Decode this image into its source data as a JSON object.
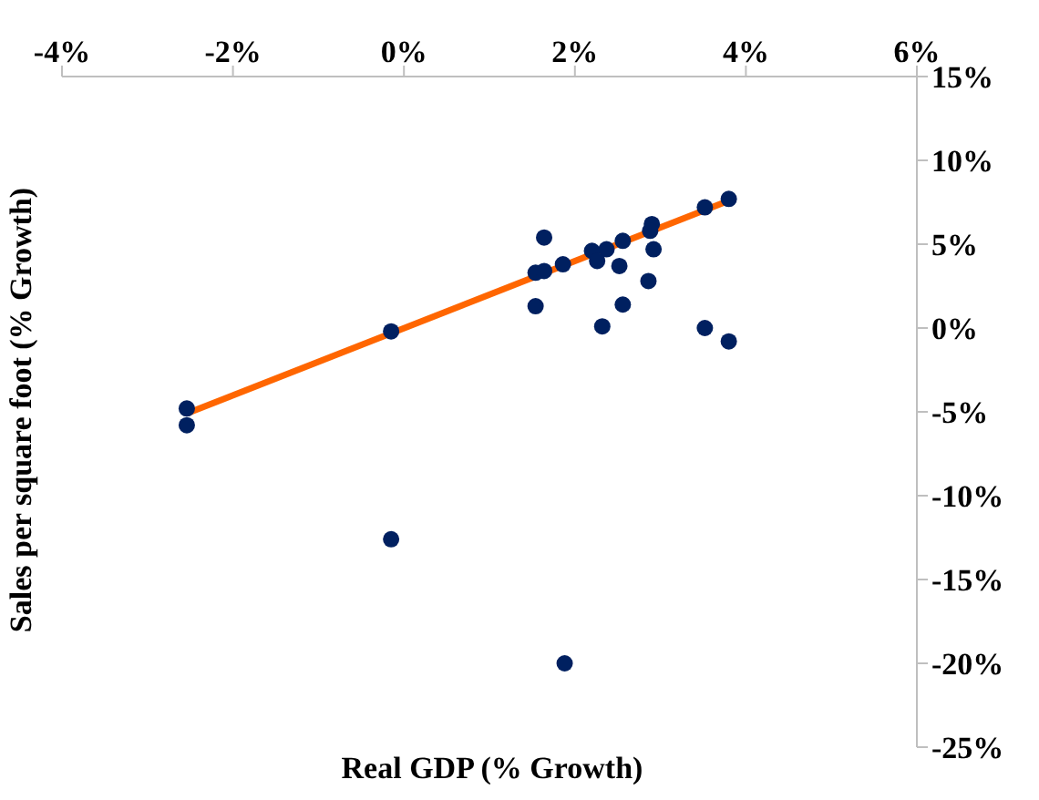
{
  "chart_data": {
    "type": "scatter",
    "xlabel": "Real GDP (% Growth)",
    "ylabel": "Sales per square foot (% Growth)",
    "xlim": [
      -4,
      6
    ],
    "xticks": [
      {
        "value": -4,
        "label": "-4%"
      },
      {
        "value": -2,
        "label": "-2%"
      },
      {
        "value": 0,
        "label": "0%"
      },
      {
        "value": 2,
        "label": "2%"
      },
      {
        "value": 4,
        "label": "4%"
      },
      {
        "value": 6,
        "label": "6%"
      }
    ],
    "ylim": [
      -25,
      15
    ],
    "yticks": [
      {
        "value": -25,
        "label": "-25%"
      },
      {
        "value": -20,
        "label": "-20%"
      },
      {
        "value": -15,
        "label": "-15%"
      },
      {
        "value": -10,
        "label": "-10%"
      },
      {
        "value": -5,
        "label": "-5%"
      },
      {
        "value": 0,
        "label": "0%"
      },
      {
        "value": 5,
        "label": "5%"
      },
      {
        "value": 10,
        "label": "10%"
      },
      {
        "value": 15,
        "label": "15%"
      }
    ],
    "grid": false,
    "legend": false,
    "marker": "circle",
    "series": [
      {
        "type": "line",
        "marker": "none",
        "color": "#ff6600",
        "x": [
          -2.54,
          3.8
        ],
        "values": [
          -5.1,
          7.6
        ]
      },
      {
        "color": "#002060",
        "x": [
          -2.54,
          -2.54,
          -0.15,
          -0.15,
          1.64,
          1.54,
          1.64,
          1.54,
          1.86,
          1.88,
          2.2,
          2.37,
          2.26,
          2.52,
          2.56,
          2.9,
          2.88,
          2.92,
          2.86,
          2.56,
          2.32,
          3.52,
          3.8,
          3.52,
          3.8
        ],
        "values": [
          -4.8,
          -5.8,
          -0.2,
          -12.6,
          5.4,
          3.3,
          3.4,
          1.3,
          3.8,
          -20.0,
          4.6,
          4.7,
          4.0,
          3.7,
          5.2,
          6.2,
          5.8,
          4.7,
          2.8,
          1.4,
          0.1,
          7.2,
          7.7,
          0.0,
          -0.8
        ]
      }
    ]
  }
}
